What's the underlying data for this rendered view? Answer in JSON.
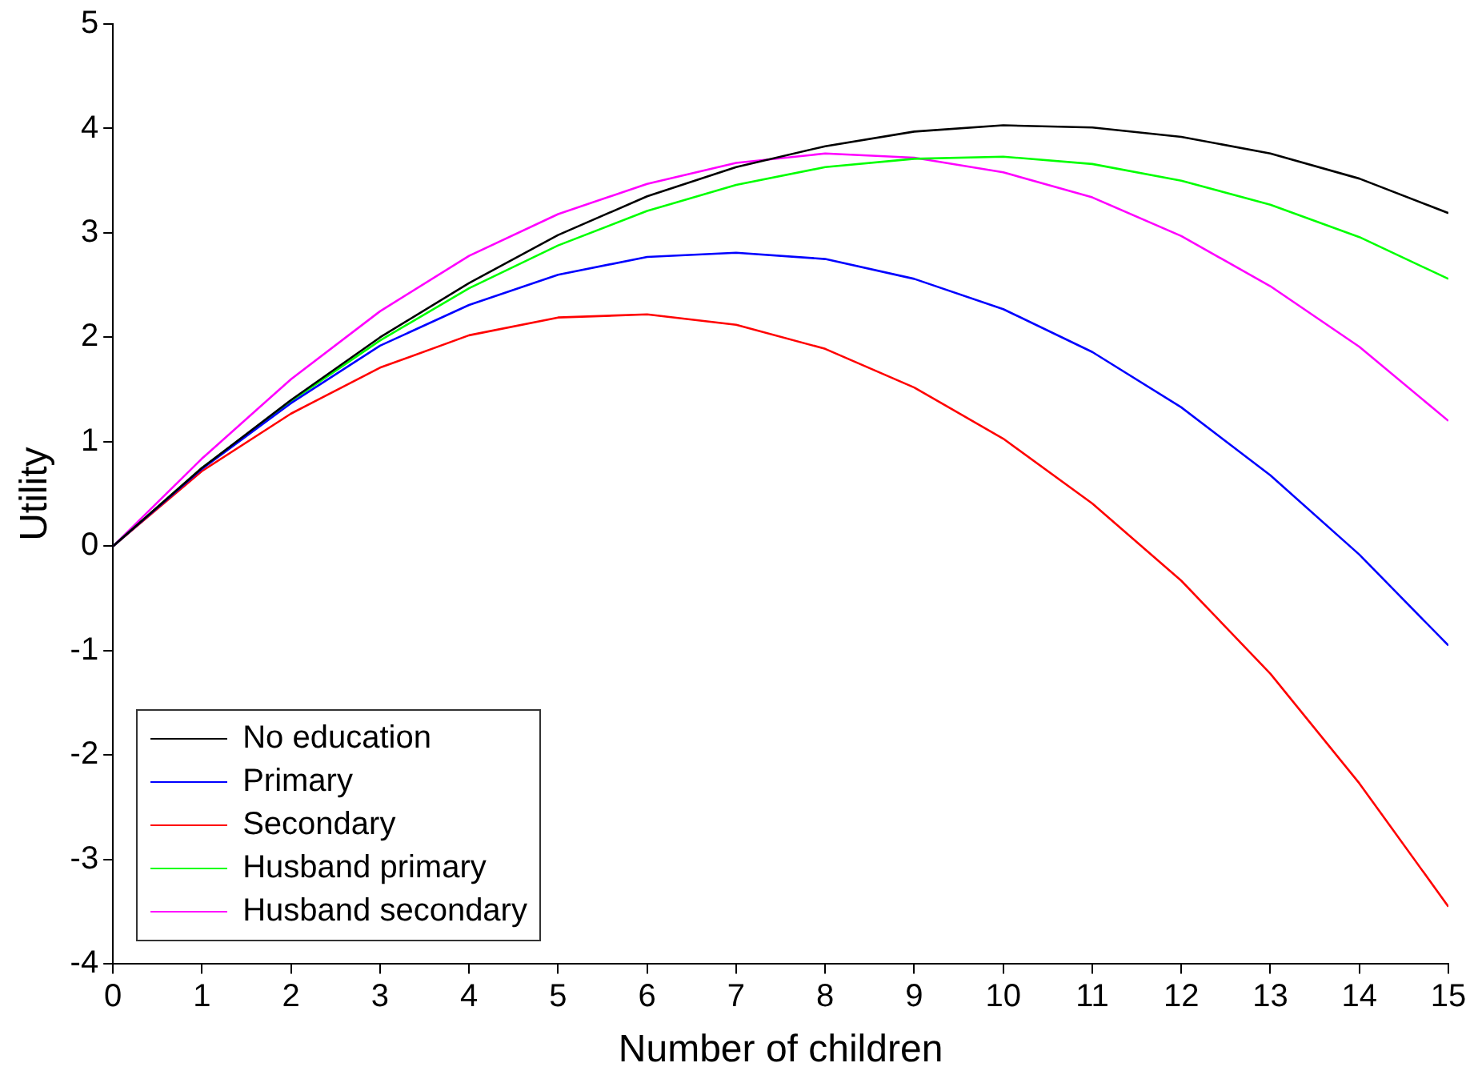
{
  "chart_data": {
    "type": "line",
    "xlabel": "Number of children",
    "ylabel": "Utility",
    "x": [
      0,
      1,
      2,
      3,
      4,
      5,
      6,
      7,
      8,
      9,
      10,
      11,
      12,
      13,
      14,
      15
    ],
    "xlim": [
      0,
      15
    ],
    "xticks": [
      0,
      1,
      2,
      3,
      4,
      5,
      6,
      7,
      8,
      9,
      10,
      11,
      12,
      13,
      14,
      15
    ],
    "ylim": [
      -4,
      5
    ],
    "yticks": [
      -4,
      -3,
      -2,
      -1,
      0,
      1,
      2,
      3,
      4,
      5
    ],
    "grid": false,
    "legend": "bottom left",
    "marker": "none",
    "line_style": "solid",
    "series": [
      {
        "name": "No education",
        "color": "#000000",
        "values": [
          0,
          0.75,
          1.4,
          2.0,
          2.52,
          2.98,
          3.35,
          3.63,
          3.83,
          3.97,
          4.03,
          4.01,
          3.92,
          3.76,
          3.52,
          3.19
        ]
      },
      {
        "name": "Primary",
        "color": "#0000ff",
        "values": [
          0,
          0.74,
          1.37,
          1.92,
          2.31,
          2.6,
          2.77,
          2.81,
          2.75,
          2.56,
          2.27,
          1.86,
          1.33,
          0.68,
          -0.08,
          -0.95
        ]
      },
      {
        "name": "Secondary",
        "color": "#ff0000",
        "values": [
          0,
          0.72,
          1.27,
          1.71,
          2.02,
          2.19,
          2.22,
          2.12,
          1.89,
          1.52,
          1.03,
          0.41,
          -0.33,
          -1.22,
          -2.27,
          -3.45
        ]
      },
      {
        "name": "Husband primary",
        "color": "#00ff00",
        "values": [
          0,
          0.75,
          1.39,
          1.97,
          2.47,
          2.88,
          3.21,
          3.46,
          3.63,
          3.71,
          3.73,
          3.66,
          3.5,
          3.27,
          2.96,
          2.56
        ]
      },
      {
        "name": "Husband secondary",
        "color": "#ff00ff",
        "values": [
          0,
          0.84,
          1.6,
          2.25,
          2.78,
          3.18,
          3.47,
          3.67,
          3.76,
          3.72,
          3.58,
          3.34,
          2.97,
          2.49,
          1.91,
          1.2
        ]
      }
    ]
  }
}
